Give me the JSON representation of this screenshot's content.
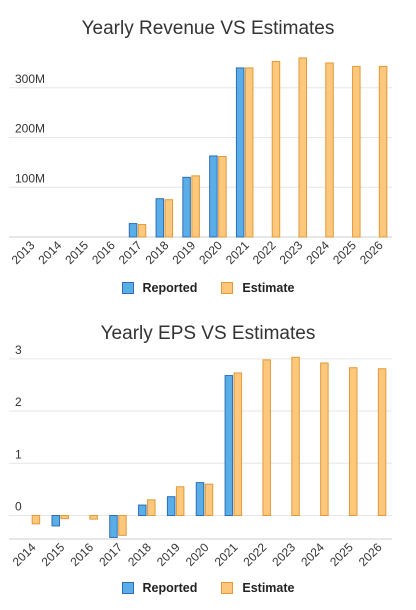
{
  "chart_data": [
    {
      "type": "bar",
      "title": "Yearly Revenue VS Estimates",
      "categories": [
        "2013",
        "2014",
        "2015",
        "2016",
        "2017",
        "2018",
        "2019",
        "2020",
        "2021",
        "2022",
        "2023",
        "2024",
        "2025",
        "2026"
      ],
      "series": [
        {
          "name": "Reported",
          "values": [
            null,
            null,
            null,
            null,
            27,
            77,
            120,
            163,
            340,
            null,
            null,
            null,
            null,
            null
          ]
        },
        {
          "name": "Estimate",
          "values": [
            null,
            null,
            null,
            null,
            25,
            75,
            123,
            162,
            340,
            353,
            360,
            350,
            343,
            343
          ]
        }
      ],
      "yticks": [
        "100M",
        "200M",
        "300M"
      ],
      "ylim": [
        0,
        370
      ],
      "legend": "bottom",
      "grid": true,
      "colors": {
        "Reported": "#5aaee8",
        "Reported_border": "#2f6db5",
        "Estimate": "#fdc77c",
        "Estimate_border": "#e09a3a"
      }
    },
    {
      "type": "bar",
      "title": "Yearly EPS VS Estimates",
      "categories": [
        "2014",
        "2015",
        "2016",
        "2017",
        "2018",
        "2019",
        "2020",
        "2021",
        "2022",
        "2023",
        "2024",
        "2025",
        "2026"
      ],
      "series": [
        {
          "name": "Reported",
          "values": [
            0.0,
            -0.2,
            0.0,
            -0.42,
            0.2,
            0.36,
            0.63,
            2.68,
            null,
            null,
            null,
            null,
            null
          ]
        },
        {
          "name": "Estimate",
          "values": [
            -0.16,
            -0.06,
            -0.07,
            -0.38,
            0.3,
            0.55,
            0.6,
            2.73,
            2.98,
            3.03,
            2.92,
            2.83,
            2.81
          ]
        }
      ],
      "yticks": [
        "0",
        "1",
        "2",
        "3"
      ],
      "ylim": [
        -0.45,
        3.15
      ],
      "legend": "bottom",
      "grid": true,
      "colors": {
        "Reported": "#5aaee8",
        "Reported_border": "#2f6db5",
        "Estimate": "#fdc77c",
        "Estimate_border": "#e09a3a"
      }
    }
  ],
  "legend": {
    "reported_label": "Reported",
    "estimate_label": "Estimate"
  }
}
